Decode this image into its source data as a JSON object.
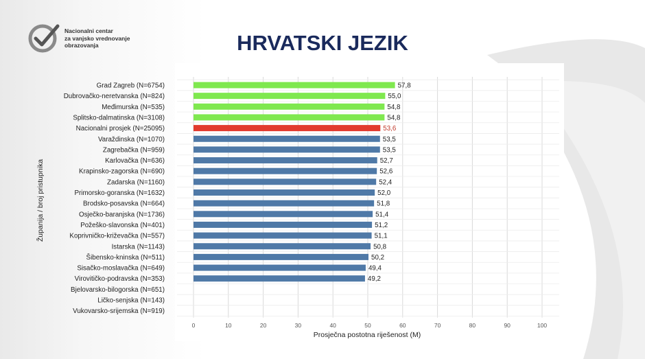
{
  "header": {
    "title": "HRVATSKI JEZIK",
    "logo_lines": [
      "Nacionalni centar",
      "za vanjsko vrednovanje",
      "obrazovanja"
    ]
  },
  "colors": {
    "top": "#7fe84f",
    "national": "#e23a2e",
    "other": "#4f79a7",
    "national_label": "#c0392b",
    "grid": "#d9d9d9",
    "title": "#1a2a5c"
  },
  "chart_data": {
    "type": "bar",
    "orientation": "horizontal",
    "xlabel": "Prosječna postotna riješenost (M)",
    "ylabel": "Županija / broj pristupnika",
    "xlim": [
      0,
      100
    ],
    "xticks": [
      "0",
      "10",
      "20",
      "30",
      "40",
      "50",
      "60",
      "70",
      "80",
      "90",
      "100"
    ],
    "grid": true,
    "categories": [
      "Grad Zagreb (N=6754)",
      "Dubrovačko-neretvanska (N=824)",
      "Međimurska (N=535)",
      "Splitsko-dalmatinska (N=3108)",
      "Nacionalni prosjek (N=25095)",
      "Varaždinska (N=1070)",
      "Zagrebačka (N=959)",
      "Karlovačka (N=636)",
      "Krapinsko-zagorska (N=690)",
      "Zadarska (N=1160)",
      "Primorsko-goranska (N=1632)",
      "Brodsko-posavska (N=664)",
      "Osječko-baranjska (N=1736)",
      "Požeško-slavonska (N=401)",
      "Koprivničko-križevačka (N=557)",
      "Istarska (N=1143)",
      "Šibensko-kninska (N=511)",
      "Sisačko-moslavačka (N=649)",
      "Virovitičko-podravska (N=353)",
      "Bjelovarsko-bilogorska (N=651)",
      "Ličko-senjska (N=143)",
      "Vukovarsko-srijemska (N=919)"
    ],
    "values": [
      57.8,
      55.0,
      54.8,
      54.8,
      53.6,
      53.5,
      53.5,
      52.7,
      52.6,
      52.4,
      52.0,
      51.8,
      51.4,
      51.2,
      51.1,
      50.8,
      50.2,
      49.4,
      49.2,
      null,
      null,
      null
    ],
    "value_labels": [
      "57,8",
      "55,0",
      "54,8",
      "54,8",
      "53,6",
      "53,5",
      "53,5",
      "52,7",
      "52,6",
      "52,4",
      "52,0",
      "51,8",
      "51,4",
      "51,2",
      "51,1",
      "50,8",
      "50,2",
      "49,4",
      "49,2",
      "",
      "",
      ""
    ],
    "groups": [
      "top",
      "top",
      "top",
      "top",
      "national",
      "other",
      "other",
      "other",
      "other",
      "other",
      "other",
      "other",
      "other",
      "other",
      "other",
      "other",
      "other",
      "other",
      "other",
      "other",
      "other",
      "other"
    ]
  }
}
